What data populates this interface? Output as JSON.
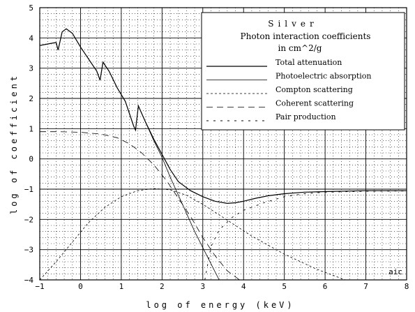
{
  "chart_data": {
    "type": "line",
    "title": "Silver",
    "subtitle": "Photon interaction coefficients",
    "units_line": "in cm^2/g",
    "xlabel": "log of energy (keV)",
    "ylabel": "log of coefficient",
    "xlim": [
      -1,
      8
    ],
    "ylim": [
      -4,
      5
    ],
    "x_ticks": [
      -1,
      0,
      1,
      2,
      3,
      4,
      5,
      6,
      7,
      8
    ],
    "y_ticks": [
      5,
      4,
      3,
      2,
      1,
      0,
      -1,
      -2,
      -3,
      -4
    ],
    "x_tick_labels": [
      "−1",
      "0",
      "1",
      "2",
      "3",
      "4",
      "5",
      "6",
      "7",
      "8"
    ],
    "y_tick_labels": [
      "5",
      "4",
      "3",
      "2",
      "1",
      "0",
      "−1",
      "−2",
      "−3",
      "−4"
    ],
    "grid": true,
    "legend_position": "top-right",
    "corner_note": "aic",
    "series": [
      {
        "name": "Total attenuation",
        "dash": "solid",
        "points": [
          [
            -1.0,
            3.75
          ],
          [
            -0.8,
            3.8
          ],
          [
            -0.6,
            3.85
          ],
          [
            -0.55,
            3.6
          ],
          [
            -0.45,
            4.2
          ],
          [
            -0.35,
            4.3
          ],
          [
            -0.2,
            4.15
          ],
          [
            0,
            3.7
          ],
          [
            0.2,
            3.3
          ],
          [
            0.4,
            2.9
          ],
          [
            0.48,
            2.6
          ],
          [
            0.55,
            3.2
          ],
          [
            0.7,
            2.9
          ],
          [
            0.9,
            2.35
          ],
          [
            1.1,
            1.9
          ],
          [
            1.3,
            1.1
          ],
          [
            1.35,
            0.95
          ],
          [
            1.42,
            1.75
          ],
          [
            1.6,
            1.2
          ],
          [
            1.8,
            0.65
          ],
          [
            2.0,
            0.15
          ],
          [
            2.2,
            -0.35
          ],
          [
            2.4,
            -0.75
          ],
          [
            2.7,
            -1.05
          ],
          [
            3.0,
            -1.25
          ],
          [
            3.3,
            -1.4
          ],
          [
            3.6,
            -1.47
          ],
          [
            3.8,
            -1.45
          ],
          [
            4.0,
            -1.4
          ],
          [
            4.3,
            -1.3
          ],
          [
            4.6,
            -1.22
          ],
          [
            5.0,
            -1.15
          ],
          [
            5.5,
            -1.1
          ],
          [
            6.0,
            -1.08
          ],
          [
            7.0,
            -1.05
          ],
          [
            8.0,
            -1.05
          ]
        ]
      },
      {
        "name": "Photoelectric absorption",
        "dash": "solid-thin",
        "points": [
          [
            -1.0,
            3.75
          ],
          [
            -0.8,
            3.8
          ],
          [
            -0.6,
            3.85
          ],
          [
            -0.55,
            3.6
          ],
          [
            -0.45,
            4.2
          ],
          [
            -0.35,
            4.3
          ],
          [
            -0.2,
            4.15
          ],
          [
            0,
            3.7
          ],
          [
            0.2,
            3.3
          ],
          [
            0.4,
            2.9
          ],
          [
            0.48,
            2.6
          ],
          [
            0.55,
            3.2
          ],
          [
            0.7,
            2.9
          ],
          [
            0.9,
            2.35
          ],
          [
            1.1,
            1.9
          ],
          [
            1.3,
            1.1
          ],
          [
            1.35,
            0.95
          ],
          [
            1.42,
            1.75
          ],
          [
            1.6,
            1.2
          ],
          [
            1.8,
            0.6
          ],
          [
            2.0,
            0.05
          ],
          [
            2.2,
            -0.6
          ],
          [
            2.5,
            -1.5
          ],
          [
            2.8,
            -2.4
          ],
          [
            3.1,
            -3.2
          ],
          [
            3.4,
            -4.0
          ]
        ]
      },
      {
        "name": "Compton scattering",
        "dash": "short",
        "points": [
          [
            -1.0,
            -4.0
          ],
          [
            -0.6,
            -3.4
          ],
          [
            -0.2,
            -2.75
          ],
          [
            0.2,
            -2.1
          ],
          [
            0.6,
            -1.6
          ],
          [
            1.0,
            -1.25
          ],
          [
            1.4,
            -1.05
          ],
          [
            1.8,
            -0.98
          ],
          [
            2.2,
            -1.02
          ],
          [
            2.6,
            -1.2
          ],
          [
            3.0,
            -1.5
          ],
          [
            3.4,
            -1.85
          ],
          [
            3.8,
            -2.2
          ],
          [
            4.2,
            -2.55
          ],
          [
            4.6,
            -2.85
          ],
          [
            5.0,
            -3.15
          ],
          [
            5.4,
            -3.4
          ],
          [
            5.8,
            -3.65
          ],
          [
            6.3,
            -3.9
          ],
          [
            6.5,
            -4.0
          ]
        ]
      },
      {
        "name": "Coherent scattering",
        "dash": "long",
        "points": [
          [
            -1.0,
            0.9
          ],
          [
            -0.5,
            0.9
          ],
          [
            0,
            0.88
          ],
          [
            0.5,
            0.82
          ],
          [
            0.9,
            0.7
          ],
          [
            1.2,
            0.5
          ],
          [
            1.5,
            0.2
          ],
          [
            1.8,
            -0.2
          ],
          [
            2.1,
            -0.7
          ],
          [
            2.4,
            -1.3
          ],
          [
            2.7,
            -1.9
          ],
          [
            3.0,
            -2.6
          ],
          [
            3.3,
            -3.2
          ],
          [
            3.6,
            -3.7
          ],
          [
            3.9,
            -4.0
          ]
        ]
      },
      {
        "name": "Pair production",
        "dash": "sparse",
        "points": [
          [
            3.05,
            -4.0
          ],
          [
            3.2,
            -2.9
          ],
          [
            3.4,
            -2.35
          ],
          [
            3.7,
            -1.95
          ],
          [
            4.0,
            -1.7
          ],
          [
            4.5,
            -1.45
          ],
          [
            5.0,
            -1.25
          ],
          [
            5.5,
            -1.15
          ],
          [
            6.0,
            -1.1
          ],
          [
            7.0,
            -1.07
          ],
          [
            8.0,
            -1.06
          ]
        ]
      }
    ]
  }
}
